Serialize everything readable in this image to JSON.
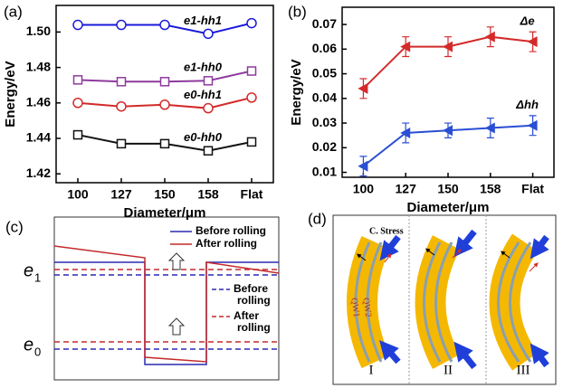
{
  "chart_data": [
    {
      "type": "line",
      "panel": "(a)",
      "x_label": "Diameter/μm",
      "y_label": "Energy/eV",
      "categories": [
        "100",
        "127",
        "150",
        "158",
        "Flat"
      ],
      "ylim": [
        1.415,
        1.515
      ],
      "yticks": [
        1.42,
        1.44,
        1.46,
        1.48,
        {
          "value": 1.5,
          "label": "1.50"
        }
      ],
      "series": [
        {
          "name": "e1-hh1",
          "color": "#1a1adb",
          "marker": "circle",
          "values": [
            1.504,
            1.504,
            1.504,
            1.499,
            1.505
          ]
        },
        {
          "name": "e1-hh0",
          "color": "#8e3a9e",
          "marker": "square",
          "values": [
            1.473,
            1.472,
            1.472,
            1.4725,
            1.478
          ]
        },
        {
          "name": "e0-hh1",
          "color": "#d42a2a",
          "marker": "circle",
          "values": [
            1.46,
            1.458,
            1.459,
            1.457,
            1.463
          ]
        },
        {
          "name": "e0-hh0",
          "color": "#111111",
          "marker": "square",
          "values": [
            1.442,
            1.437,
            1.437,
            1.433,
            1.438
          ]
        }
      ]
    },
    {
      "type": "line",
      "panel": "(b)",
      "x_label": "Diameter/μm",
      "y_label": "Energy/eV",
      "categories": [
        "100",
        "127",
        "150",
        "158",
        "Flat"
      ],
      "ylim": [
        0.008,
        0.077
      ],
      "yticks": [
        0.01,
        0.02,
        0.03,
        0.04,
        0.05,
        0.06,
        0.07
      ],
      "series": [
        {
          "name": "Δe",
          "color": "#d42a2a",
          "marker": "triangle-left",
          "values": [
            0.044,
            0.061,
            0.061,
            0.065,
            0.063
          ],
          "errors": [
            0.004,
            0.004,
            0.004,
            0.004,
            0.004
          ]
        },
        {
          "name": "Δhh",
          "color": "#2a4ed4",
          "marker": "triangle-left",
          "values": [
            0.0125,
            0.026,
            0.027,
            0.028,
            0.029
          ],
          "errors": [
            0.004,
            0.004,
            0.003,
            0.004,
            0.004
          ]
        }
      ]
    }
  ],
  "panel_c": {
    "label": "(c)",
    "legend": [
      {
        "name": "Before rolling",
        "color": "#2a2ab0"
      },
      {
        "name": "After rolling",
        "color": "#c42a2a"
      }
    ],
    "dashed_legend": [
      {
        "lines": [
          "Before",
          "rolling"
        ],
        "color": "#2a2ab0"
      },
      {
        "lines": [
          "After",
          "rolling"
        ],
        "color": "#c42a2a"
      }
    ],
    "levels": [
      {
        "symbol": "e",
        "subscript": "1"
      },
      {
        "symbol": "e",
        "subscript": "0"
      }
    ]
  },
  "panel_d": {
    "label": "(d)",
    "stress": "C. Stress",
    "wells": [
      "QW1",
      "QW2"
    ],
    "stages": [
      "I",
      "II",
      "III"
    ]
  }
}
